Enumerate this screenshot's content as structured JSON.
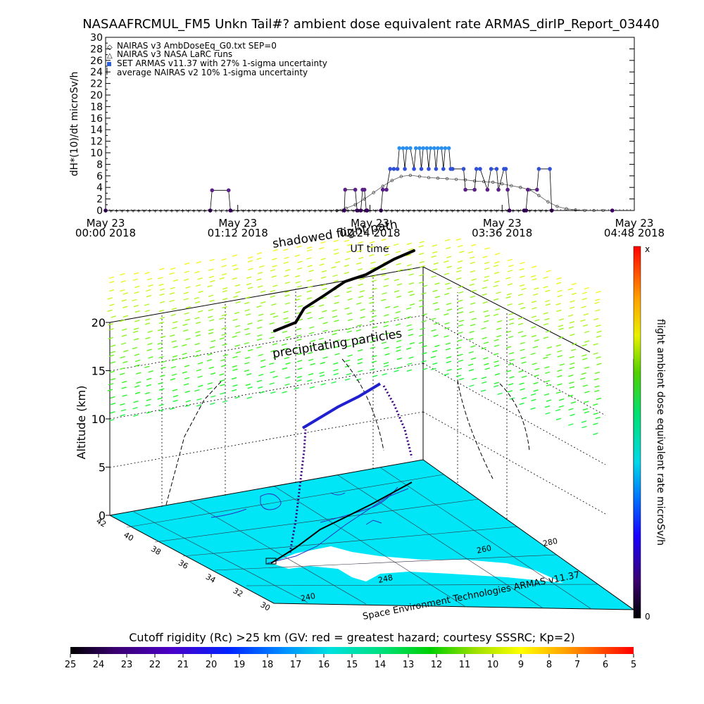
{
  "title": "NASAAFRCMUL_FM5 Unkn Tail#? ambient dose equivalent rate ARMAS_dirIP_Report_03440",
  "chart_data": [
    {
      "type": "line",
      "ylabel": "dH*(10)/dt microSv/h",
      "xlabel": "UT time",
      "ylim": [
        0,
        30
      ],
      "yticks": [
        "0",
        "2",
        "4",
        "6",
        "8",
        "10",
        "12",
        "14",
        "16",
        "18",
        "20",
        "22",
        "24",
        "26",
        "28",
        "30"
      ],
      "xticks": [
        {
          "line1": "May 23",
          "line2": "00:00 2018"
        },
        {
          "line1": "May 23",
          "line2": "01:12 2018"
        },
        {
          "line1": "May 23",
          "line2": "02:24 2018"
        },
        {
          "line1": "May 23",
          "line2": "03:36 2018"
        },
        {
          "line1": "May 23",
          "line2": "04:48 2018"
        }
      ],
      "xrange_minutes": [
        0,
        288
      ],
      "legend": [
        "NAIRAS v3 AmbDoseEq_G0.txt SEP=0",
        "NAIRAS v3 NASA LaRC runs",
        "SET ARMAS v11.37 with 27% 1-sigma uncertainty",
        "average NAIRAS v2 10% 1-sigma uncertainty"
      ],
      "legend_position": "top-left",
      "series": [
        {
          "name": "NAIRAS v3 AmbDoseEq_G0.txt SEP=0",
          "color": "#000000",
          "x": [
            0,
            126,
            131,
            136,
            141,
            146,
            151,
            156,
            161,
            166,
            171,
            176,
            181,
            186,
            191,
            196,
            201,
            206,
            211,
            216,
            221,
            226,
            231,
            236,
            241,
            246,
            251,
            256,
            261,
            266,
            271,
            276
          ],
          "values": [
            0,
            0,
            0.4,
            1.0,
            2.0,
            3.1,
            4.2,
            5.2,
            5.9,
            6.1,
            5.9,
            5.7,
            5.6,
            5.5,
            5.4,
            5.3,
            5.1,
            5.0,
            4.9,
            4.6,
            4.3,
            4.0,
            3.6,
            2.6,
            1.5,
            0.7,
            0.3,
            0.1,
            0,
            0,
            0,
            0
          ]
        },
        {
          "name": "SET ARMAS v11.37 with 27% 1-sigma uncertainty",
          "color": "#4a0080",
          "x": [
            0,
            57,
            58,
            67,
            68,
            130,
            130.5,
            136,
            137,
            139,
            140,
            141,
            142,
            142.5,
            150,
            151,
            153,
            155,
            157,
            159,
            160,
            162,
            163,
            164,
            166,
            168,
            169,
            171,
            172,
            173,
            175,
            176,
            177,
            179,
            180,
            181,
            183,
            184,
            185,
            187,
            188,
            189,
            195,
            196,
            201,
            202,
            204,
            208,
            210,
            213,
            214,
            217,
            218,
            219,
            220,
            228,
            229,
            230,
            235,
            236,
            242,
            243,
            276
          ],
          "values": [
            0,
            0,
            3.5,
            3.5,
            0,
            0,
            3.6,
            3.6,
            0,
            0,
            3.6,
            3.6,
            0,
            0,
            0,
            3.6,
            3.6,
            7.2,
            7.2,
            7.2,
            10.8,
            10.8,
            7.2,
            10.8,
            10.8,
            7.2,
            10.8,
            10.8,
            7.2,
            10.8,
            10.8,
            7.2,
            10.8,
            10.8,
            7.2,
            10.8,
            10.8,
            7.2,
            10.8,
            10.8,
            7.2,
            7.2,
            7.2,
            3.6,
            3.6,
            7.2,
            7.2,
            3.6,
            7.2,
            7.2,
            3.6,
            7.2,
            7.2,
            3.6,
            0,
            0,
            0,
            3.6,
            3.6,
            7.2,
            7.2,
            0,
            0
          ]
        }
      ]
    },
    {
      "type": "scatter",
      "xlabel": "",
      "ylabel": "Altitude (km)",
      "zticks": [
        "0",
        "5",
        "10",
        "15",
        "20"
      ],
      "latitude_ticks": [
        "42",
        "40",
        "38",
        "36",
        "34",
        "32",
        "30"
      ],
      "longitude_ticks": [
        "240",
        "248",
        "260",
        "280"
      ],
      "annotations": [
        "shadowed flight path",
        "precipitating particles"
      ],
      "credit": "Space Environment Technologies ARMAS v11.37",
      "colorbar_right": {
        "label": "flight ambient dose equivalent rate microSv/h",
        "top": "x",
        "bottom": "0"
      }
    }
  ],
  "colorbar_bottom": {
    "title": "Cutoff rigidity (Rc) >25 km (GV: red = greatest hazard; courtesy SSSRC; Kp=2)",
    "ticks": [
      "25",
      "24",
      "23",
      "22",
      "21",
      "20",
      "19",
      "18",
      "17",
      "16",
      "15",
      "14",
      "13",
      "12",
      "11",
      "10",
      "9",
      "8",
      "7",
      "6",
      "5"
    ]
  }
}
